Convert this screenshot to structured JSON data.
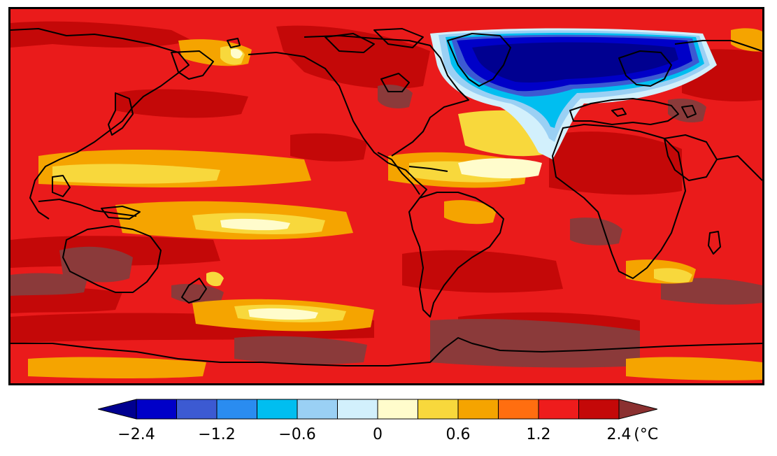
{
  "map": {
    "projection": "equirectangular",
    "center_longitude": 180,
    "base_field_color": "#ea1b1b",
    "coastline_color": "#000000"
  },
  "colorbar": {
    "unit": "(°C)",
    "extend": "both",
    "min_arrow_color": "#000090",
    "max_arrow_color": "#8b3030",
    "colors": [
      "#0000c8",
      "#3c5ad2",
      "#2a8cf0",
      "#00bef0",
      "#9ad0f4",
      "#d2f0fc",
      "#fffccc",
      "#f8d83c",
      "#f5a400",
      "#ff6e10",
      "#ee1c1c",
      "#c40808"
    ],
    "ticks": [
      {
        "label": "−2.4",
        "value": -2.4
      },
      {
        "label": "−1.2",
        "value": -1.2
      },
      {
        "label": "−0.6",
        "value": -0.6
      },
      {
        "label": "0",
        "value": 0
      },
      {
        "label": "0.6",
        "value": 0.6
      },
      {
        "label": "1.2",
        "value": 1.2
      },
      {
        "label": "2.4",
        "value": 2.4
      }
    ]
  },
  "anomaly_patches": [
    {
      "name": "dark-red",
      "color": "#c40808"
    },
    {
      "name": "very-dark",
      "color": "#8b3a3a"
    },
    {
      "name": "orange",
      "color": "#f5a400"
    },
    {
      "name": "yellow",
      "color": "#f8d83c"
    },
    {
      "name": "pale-yellow",
      "color": "#fffccc"
    },
    {
      "name": "pale-blue",
      "color": "#d2f0fc"
    },
    {
      "name": "light-blue",
      "color": "#9ad0f4"
    },
    {
      "name": "sky-blue",
      "color": "#00bef0"
    },
    {
      "name": "mid-blue",
      "color": "#3c5ad2"
    },
    {
      "name": "deep-blue",
      "color": "#0000c8"
    },
    {
      "name": "navy",
      "color": "#000090"
    }
  ]
}
